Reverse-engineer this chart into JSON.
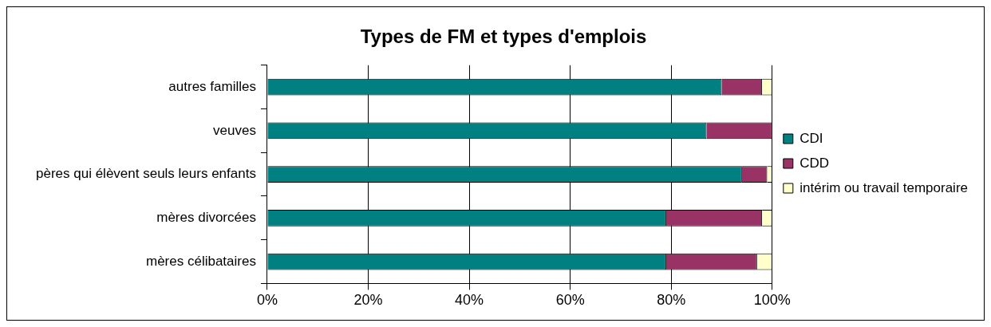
{
  "chart_data": {
    "type": "bar",
    "title": "Types de FM et types d'emplois",
    "orientation": "horizontal",
    "stacked": true,
    "categories": [
      "autres familles",
      "veuves",
      "pères qui élèvent seuls leurs enfants",
      "mères divorcées",
      "mères célibataires"
    ],
    "series": [
      {
        "name": "CDI",
        "color": "#008080",
        "values": [
          90,
          87,
          94,
          79,
          79
        ]
      },
      {
        "name": "CDD",
        "color": "#993366",
        "values": [
          8,
          13,
          5,
          19,
          18
        ]
      },
      {
        "name": "intérim ou travail temporaire",
        "color": "#ffffcc",
        "values": [
          2,
          0,
          1,
          2,
          3
        ]
      }
    ],
    "xlim": [
      0,
      100
    ],
    "xticks": [
      {
        "value": 0,
        "label": "0%"
      },
      {
        "value": 20,
        "label": "20%"
      },
      {
        "value": 40,
        "label": "40%"
      },
      {
        "value": 60,
        "label": "60%"
      },
      {
        "value": 80,
        "label": "80%"
      },
      {
        "value": 100,
        "label": "100%"
      }
    ],
    "grid": "x",
    "legend": "right"
  }
}
